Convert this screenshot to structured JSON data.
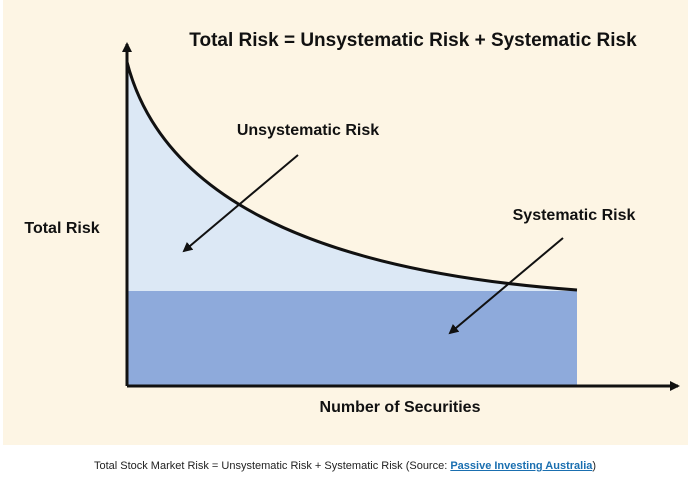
{
  "diagram": {
    "title": "Total Risk = Unsystematic Risk + Systematic Risk",
    "y_axis_label": "Total Risk",
    "x_axis_label": "Number of Securities",
    "labels": [
      "Unsystematic Risk",
      "Systematic Risk"
    ]
  },
  "caption": {
    "before": "Total Stock Market Risk = Unsystematic Risk + Systematic Risk (Source: ",
    "link": "Passive Investing Australia",
    "after": ")"
  }
}
